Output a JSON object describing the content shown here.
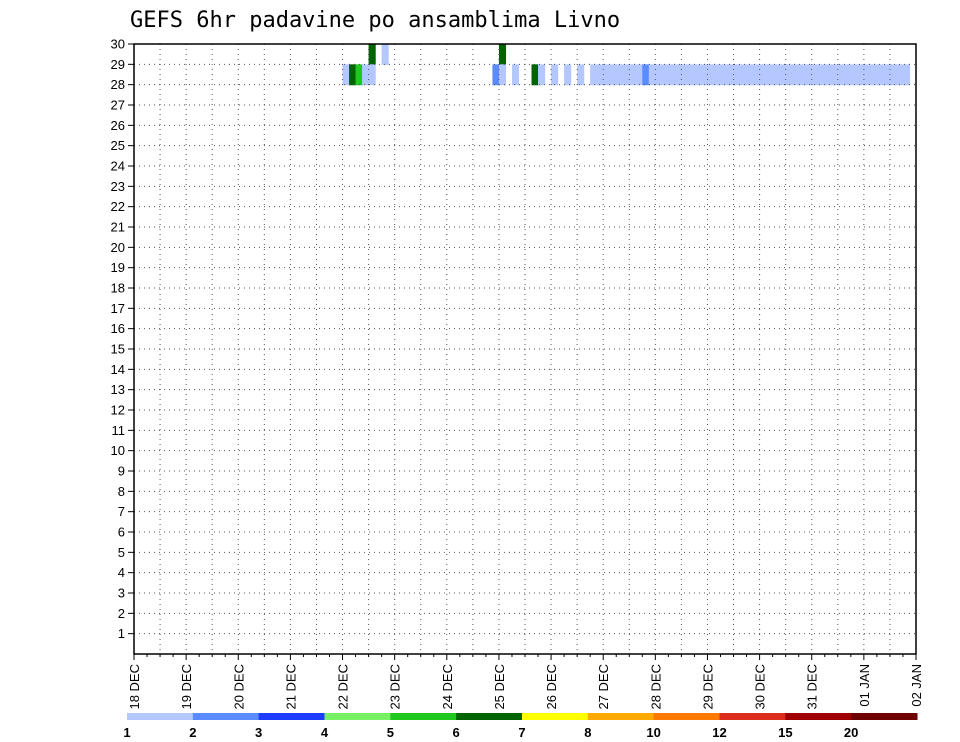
{
  "chart_data": {
    "type": "heatmap",
    "title": "GEFS 6hr padavine po ansamblima Livno",
    "xlabel": "",
    "ylabel": "",
    "x_tick_labels": [
      "18 DEC",
      "19 DEC",
      "20 DEC",
      "21 DEC",
      "22 DEC",
      "23 DEC",
      "24 DEC",
      "25 DEC",
      "26 DEC",
      "27 DEC",
      "28 DEC",
      "29 DEC",
      "30 DEC",
      "31 DEC",
      "01 JAN",
      "02 JAN"
    ],
    "y_tick_labels": [
      "1",
      "2",
      "3",
      "4",
      "5",
      "6",
      "7",
      "8",
      "9",
      "10",
      "11",
      "12",
      "13",
      "14",
      "15",
      "16",
      "17",
      "18",
      "19",
      "20",
      "21",
      "22",
      "23",
      "24",
      "25",
      "26",
      "27",
      "28",
      "29",
      "30"
    ],
    "x_unit": "6-hour step since 18 DEC 00z",
    "xlim": [
      0,
      60
    ],
    "ylim": [
      0,
      30
    ],
    "grid": true,
    "legend_position": "bottom",
    "legend": {
      "labels": [
        "1",
        "2",
        "3",
        "4",
        "5",
        "6",
        "7",
        "8",
        "10",
        "12",
        "15",
        "20"
      ],
      "colors": [
        "#b4c8ff",
        "#5a8cff",
        "#1e3cff",
        "#78f064",
        "#1ec81e",
        "#006400",
        "#ffff00",
        "#ffaa00",
        "#ff7800",
        "#dc2d1e",
        "#a00000",
        "#6e0000"
      ]
    },
    "cells": [
      [
        "h",
        30,
        18,
        6
      ],
      [
        "h",
        30,
        18,
        5
      ],
      [
        "h",
        30,
        19,
        1
      ],
      [
        "h",
        30,
        28,
        6
      ],
      [
        "h",
        29,
        16,
        1
      ],
      [
        "h",
        29,
        16.5,
        6
      ],
      [
        "h",
        29,
        17,
        5
      ],
      [
        "h",
        29,
        17.5,
        1
      ],
      [
        "h",
        29,
        18,
        1
      ],
      [
        "h",
        29,
        27.5,
        2
      ],
      [
        "h",
        29,
        28,
        1
      ],
      [
        "h",
        29,
        29,
        1
      ],
      [
        "h",
        29,
        30.5,
        6
      ],
      [
        "h",
        29,
        31,
        1
      ],
      [
        "h",
        29,
        32,
        1
      ],
      [
        "h",
        29,
        32,
        1
      ],
      [
        "h",
        29,
        33,
        1
      ],
      [
        "h",
        29,
        34,
        1
      ],
      [
        "h",
        29,
        34,
        2
      ],
      [
        "h",
        29,
        35,
        1
      ],
      [
        "h",
        29,
        35.5,
        1
      ],
      [
        "h",
        29,
        36,
        1
      ],
      [
        "h",
        29,
        36.5,
        1
      ],
      [
        "h",
        29,
        37,
        1
      ],
      [
        "h",
        29,
        37.5,
        1
      ],
      [
        "h",
        29,
        38,
        1
      ],
      [
        "h",
        29,
        38.5,
        1
      ],
      [
        "h",
        29,
        39,
        2
      ],
      [
        "h",
        29,
        39.5,
        1
      ],
      [
        "h",
        29,
        40,
        1
      ],
      [
        "h",
        29,
        40.5,
        1
      ],
      [
        "h",
        29,
        41,
        1
      ],
      [
        "h",
        29,
        41.5,
        1
      ],
      [
        "h",
        29,
        42,
        1
      ],
      [
        "h",
        29,
        42.5,
        1
      ],
      [
        "h",
        29,
        43,
        1
      ],
      [
        "h",
        29,
        43.5,
        1
      ],
      [
        "h",
        29,
        44,
        1
      ],
      [
        "h",
        29,
        44.5,
        1
      ],
      [
        "h",
        29,
        45,
        1
      ],
      [
        "h",
        29,
        45.5,
        1
      ],
      [
        "h",
        29,
        46,
        1
      ],
      [
        "h",
        29,
        46.5,
        1
      ],
      [
        "h",
        29,
        47,
        1
      ],
      [
        "h",
        29,
        47.5,
        1
      ],
      [
        "h",
        29,
        48,
        1
      ],
      [
        "h",
        29,
        48.5,
        1
      ],
      [
        "h",
        29,
        49,
        1
      ],
      [
        "h",
        29,
        49.5,
        1
      ],
      [
        "h",
        29,
        50,
        1
      ],
      [
        "h",
        29,
        50.5,
        1
      ],
      [
        "h",
        29,
        51,
        1
      ],
      [
        "h",
        29,
        51.5,
        1
      ],
      [
        "h",
        29,
        52,
        1
      ],
      [
        "h",
        29,
        52.5,
        1
      ],
      [
        "h",
        29,
        53,
        1
      ],
      [
        "h",
        29,
        53.5,
        1
      ],
      [
        "h",
        29,
        54,
        1
      ],
      [
        "h",
        29,
        54.5,
        1
      ],
      [
        "h",
        29,
        55,
        1
      ],
      [
        "h",
        29,
        55.5,
        1
      ],
      [
        "h",
        29,
        56,
        1
      ],
      [
        "h",
        29,
        56.5,
        1
      ],
      [
        "h",
        29,
        57,
        1
      ],
      [
        "h",
        29,
        57.5,
        1
      ],
      [
        "h",
        29,
        58,
        1
      ],
      [
        "h",
        29,
        58.5,
        1
      ],
      [
        "h",
        29,
        59,
        1
      ]
    ]
  }
}
